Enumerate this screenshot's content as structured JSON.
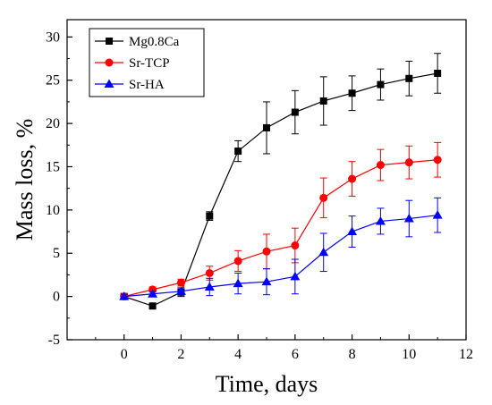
{
  "chart_data": {
    "type": "line",
    "title": "",
    "xlabel": "Time, days",
    "ylabel": "Mass loss, %",
    "xlim": [
      -2,
      12
    ],
    "ylim": [
      -5,
      32
    ],
    "xticks": [
      0,
      2,
      4,
      6,
      8,
      10,
      12
    ],
    "yticks": [
      -5,
      0,
      5,
      10,
      15,
      20,
      25,
      30
    ],
    "grid": false,
    "legend_position": "top-left",
    "x": [
      0,
      1,
      2,
      3,
      4,
      5,
      6,
      7,
      8,
      9,
      10,
      11
    ],
    "series": [
      {
        "name": "Mg0.8Ca",
        "color": "#000000",
        "marker": "square",
        "values": [
          0,
          -1.1,
          0.5,
          9.3,
          16.8,
          19.5,
          21.3,
          22.6,
          23.5,
          24.5,
          25.2,
          25.8
        ],
        "errors": [
          0.2,
          0.2,
          0.5,
          0.5,
          1.2,
          3.0,
          2.5,
          2.8,
          2.0,
          1.8,
          2.0,
          2.3
        ]
      },
      {
        "name": "Sr-TCP",
        "color": "#ff0000",
        "marker": "circle",
        "values": [
          0,
          0.8,
          1.6,
          2.7,
          4.1,
          5.2,
          5.9,
          11.4,
          13.6,
          15.2,
          15.5,
          15.8
        ],
        "errors": [
          0.2,
          0.3,
          0.4,
          0.8,
          1.2,
          2.0,
          2.0,
          2.3,
          2.0,
          1.8,
          1.9,
          2.0
        ]
      },
      {
        "name": "Sr-HA",
        "color": "#0000ff",
        "marker": "triangle",
        "values": [
          0,
          0.3,
          0.6,
          1.1,
          1.5,
          1.7,
          2.3,
          5.1,
          7.5,
          8.7,
          9.0,
          9.4
        ],
        "errors": [
          0.2,
          0.3,
          0.4,
          1.0,
          1.2,
          1.5,
          2.0,
          2.2,
          1.8,
          1.5,
          2.1,
          2.0
        ]
      }
    ]
  }
}
